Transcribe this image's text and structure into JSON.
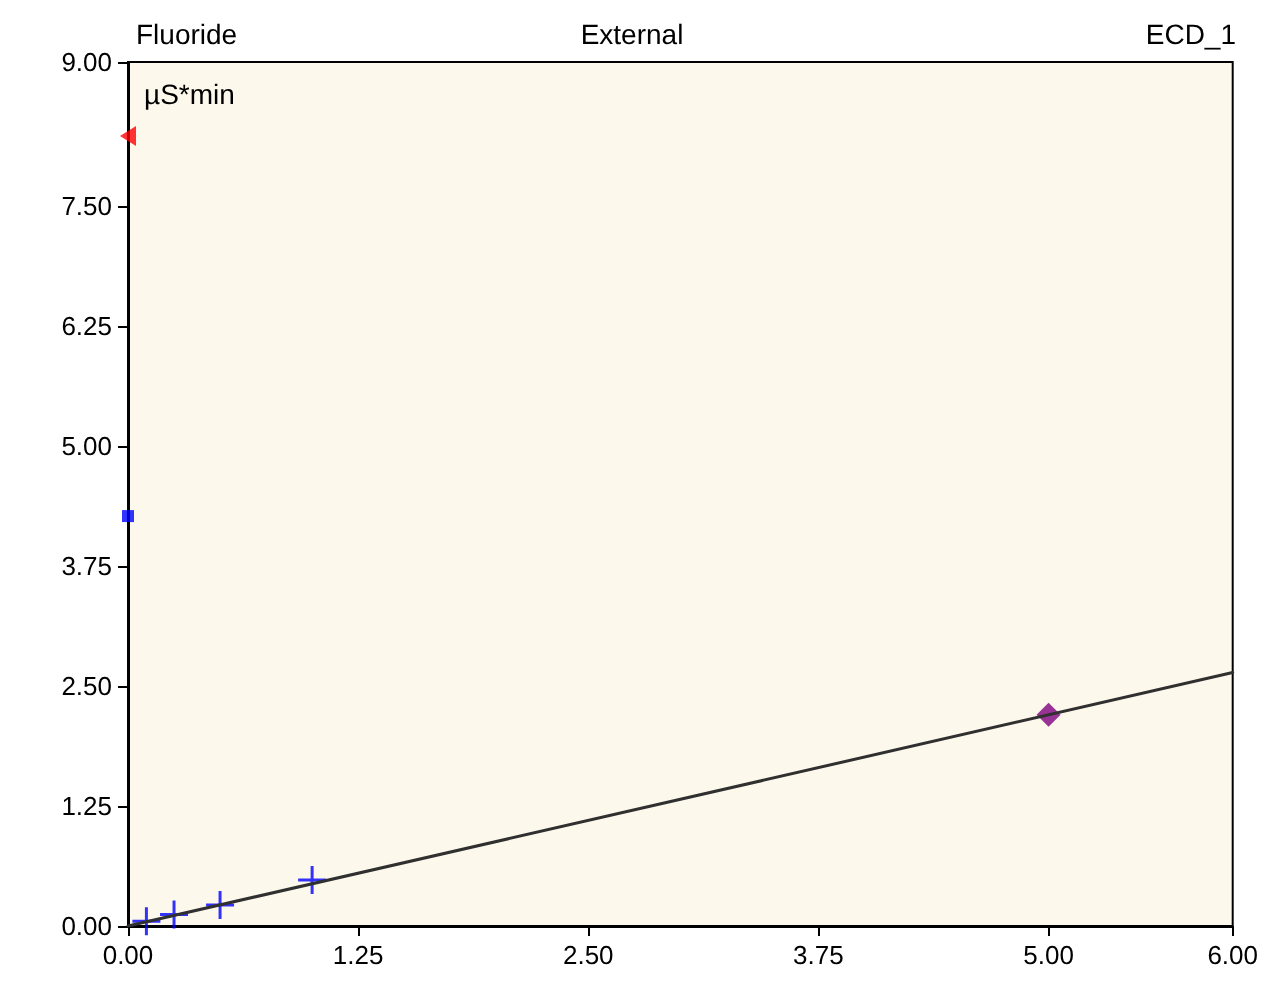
{
  "chart_data": {
    "type": "scatter",
    "title": "Fluoride",
    "subtitle": "External",
    "annotations": [
      "ECD_1"
    ],
    "ylabel": "µS*min",
    "xlim": [
      0,
      6
    ],
    "xticks": [
      {
        "value": 0,
        "label": "0.00"
      },
      {
        "value": 1.25,
        "label": "1.25"
      },
      {
        "value": 2.5,
        "label": "2.50"
      },
      {
        "value": 3.75,
        "label": "3.75"
      },
      {
        "value": 5,
        "label": "5.00"
      },
      {
        "value": 6,
        "label": "6.00"
      }
    ],
    "ylim": [
      0,
      9
    ],
    "yticks": [
      {
        "value": 0,
        "label": "0.00"
      },
      {
        "value": 1.25,
        "label": "1.25"
      },
      {
        "value": 2.5,
        "label": "2.50"
      },
      {
        "value": 3.75,
        "label": "3.75"
      },
      {
        "value": 5,
        "label": "5.00"
      },
      {
        "value": 6.25,
        "label": "6.25"
      },
      {
        "value": 7.5,
        "label": "7.50"
      },
      {
        "value": 9,
        "label": "9.00"
      }
    ],
    "grid": false,
    "series": [
      {
        "type": "line",
        "color": "#303030",
        "marker": "none",
        "line_style": "solid",
        "x": [
          0,
          6
        ],
        "values": [
          0,
          2.64
        ]
      },
      {
        "color": "#0000ff",
        "marker": "cross",
        "x": [
          0.1,
          0.25,
          0.5,
          1.0
        ],
        "values": [
          0.05,
          0.12,
          0.22,
          0.48
        ]
      },
      {
        "color": "#800080",
        "marker": "diamond",
        "x": [
          5
        ],
        "values": [
          2.2
        ]
      },
      {
        "color": "#0000ff",
        "marker": "square",
        "x": [
          0
        ],
        "values": [
          4.27
        ]
      },
      {
        "color": "#ff0000",
        "marker": "triangle",
        "x": [
          0
        ],
        "values": [
          8.23
        ]
      }
    ]
  }
}
